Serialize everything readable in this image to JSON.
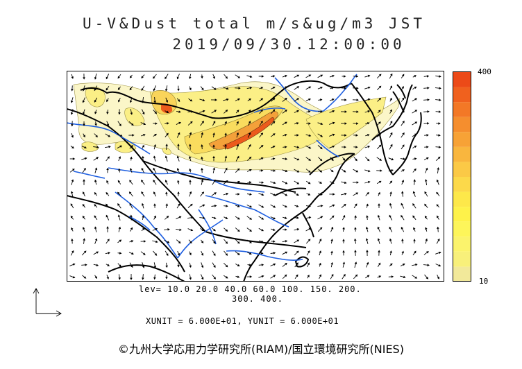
{
  "header": {
    "title_line1": "U-V&Dust total m/s&ug/m3 JST",
    "title_line2": "2019/09/30.12:00:00"
  },
  "colorbar": {
    "max_label": "400",
    "min_label": "10",
    "colors": [
      "#f2e99a",
      "#f8f07a",
      "#fbf36c",
      "#fdf55a",
      "#fef24a",
      "#fde84a",
      "#fcd94a",
      "#fbc946",
      "#f9b63e",
      "#f7a236",
      "#f58e2e",
      "#f37826",
      "#f0611e",
      "#ec4a18"
    ]
  },
  "levels": {
    "line1": "lev= 10.0 20.0 40.0 60.0 100. 150. 200.",
    "line2": "300. 400."
  },
  "units": {
    "text": "XUNIT = 6.000E+01, YUNIT = 6.000E+01"
  },
  "footer": {
    "copyright": "©九州大学応用力学研究所(RIAM)/国立環境研究所(NIES)"
  }
}
